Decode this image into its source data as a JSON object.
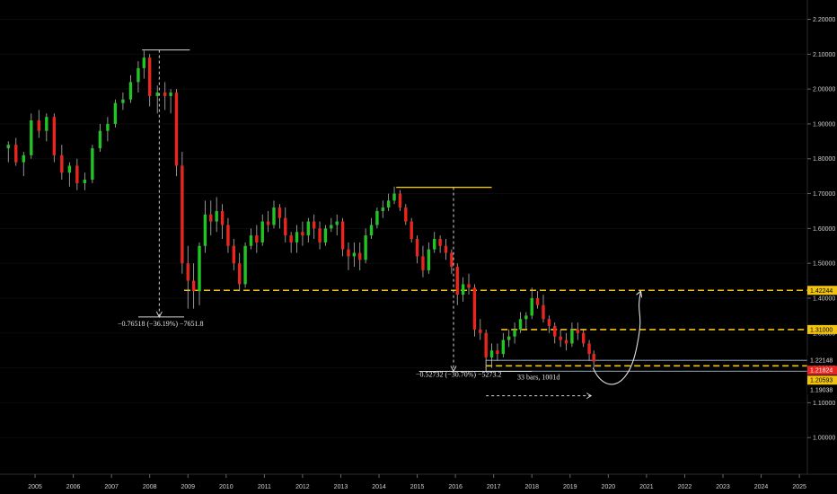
{
  "chart_data": {
    "type": "candlestick",
    "x_axis": {
      "ticks": [
        "2005",
        "2006",
        "2007",
        "2008",
        "2009",
        "2010",
        "2011",
        "2012",
        "2013",
        "2014",
        "2015",
        "2016",
        "2017",
        "2018",
        "2019",
        "2020",
        "2021",
        "2022",
        "2023",
        "2024",
        "2025"
      ],
      "range": [
        2004.2,
        2025.35
      ]
    },
    "y_axis": {
      "ticks": [
        "2.20000",
        "2.10000",
        "2.00000",
        "1.90000",
        "1.80000",
        "1.70000",
        "1.60000",
        "1.50000",
        "1.40000",
        "1.30000",
        "1.20000",
        "1.10000",
        "1.00000"
      ],
      "range": [
        0.9,
        2.24
      ]
    },
    "colors": {
      "up": "#22c425",
      "down": "#e8261f",
      "wick": "#b8b8b8",
      "level": "#f2c40f",
      "support": "#7f8a9e",
      "measure": "#d6d6d6"
    },
    "price_levels": [
      {
        "value": 1.42244,
        "label": "1.42244",
        "style": "dashed",
        "color": "#f2c40f",
        "badge_bg": "#f2c40f",
        "badge_fg": "#000000"
      },
      {
        "value": 1.31,
        "label": "1.31000",
        "style": "dashed",
        "color": "#f2c40f",
        "badge_bg": "#f2c40f",
        "badge_fg": "#000000"
      },
      {
        "value": 1.22148,
        "label": "1.22148",
        "style": "solid",
        "color": "#7f8a9e",
        "badge_bg": "#000000",
        "badge_fg": "#e0e0e0"
      },
      {
        "value": 1.21824,
        "label": "1.21824",
        "style": "solid",
        "color": "#e8261f",
        "badge_bg": "#e8261f",
        "badge_fg": "#ffffff"
      },
      {
        "value": 1.20593,
        "label": "1.20593",
        "style": "dashed",
        "color": "#f2c40f",
        "badge_bg": "#f2c40f",
        "badge_fg": "#000000"
      },
      {
        "value": 1.19038,
        "label": "1.19038",
        "style": "solid",
        "color": "#7f8a9e",
        "badge_bg": "#000000",
        "badge_fg": "#e0e0e0"
      }
    ],
    "annotations": {
      "drop1": {
        "label": "−0.76518 (−36.19%) −7651.8",
        "from": [
          2007.8,
          2.112
        ],
        "to": [
          2008.9,
          1.346
        ]
      },
      "drop2": {
        "label": "−0.52732 (−30.70%) −5273.2",
        "from": [
          2014.45,
          1.718
        ],
        "to": [
          2016.2,
          1.19
        ]
      },
      "range": {
        "label": "33 bars, 1001d",
        "from": 2016.8,
        "to": 2019.55
      },
      "projection": {
        "from": [
          2019.6,
          1.2
        ],
        "to": [
          2020.85,
          1.42
        ]
      }
    },
    "candles": [
      {
        "t": 2004.3,
        "o": 1.83,
        "h": 1.85,
        "l": 1.79,
        "c": 1.84
      },
      {
        "t": 2004.5,
        "o": 1.84,
        "h": 1.86,
        "l": 1.78,
        "c": 1.79
      },
      {
        "t": 2004.7,
        "o": 1.79,
        "h": 1.82,
        "l": 1.75,
        "c": 1.81
      },
      {
        "t": 2004.9,
        "o": 1.81,
        "h": 1.93,
        "l": 1.8,
        "c": 1.91
      },
      {
        "t": 2005.1,
        "o": 1.91,
        "h": 1.94,
        "l": 1.86,
        "c": 1.88
      },
      {
        "t": 2005.3,
        "o": 1.88,
        "h": 1.93,
        "l": 1.85,
        "c": 1.92
      },
      {
        "t": 2005.5,
        "o": 1.92,
        "h": 1.93,
        "l": 1.79,
        "c": 1.81
      },
      {
        "t": 2005.7,
        "o": 1.81,
        "h": 1.84,
        "l": 1.74,
        "c": 1.76
      },
      {
        "t": 2005.9,
        "o": 1.76,
        "h": 1.79,
        "l": 1.72,
        "c": 1.78
      },
      {
        "t": 2006.1,
        "o": 1.78,
        "h": 1.8,
        "l": 1.71,
        "c": 1.73
      },
      {
        "t": 2006.3,
        "o": 1.73,
        "h": 1.76,
        "l": 1.71,
        "c": 1.74
      },
      {
        "t": 2006.5,
        "o": 1.74,
        "h": 1.84,
        "l": 1.73,
        "c": 1.83
      },
      {
        "t": 2006.7,
        "o": 1.83,
        "h": 1.9,
        "l": 1.82,
        "c": 1.88
      },
      {
        "t": 2006.9,
        "o": 1.88,
        "h": 1.92,
        "l": 1.85,
        "c": 1.9
      },
      {
        "t": 2007.1,
        "o": 1.9,
        "h": 1.97,
        "l": 1.89,
        "c": 1.96
      },
      {
        "t": 2007.3,
        "o": 1.96,
        "h": 1.99,
        "l": 1.94,
        "c": 1.97
      },
      {
        "t": 2007.5,
        "o": 1.97,
        "h": 2.04,
        "l": 1.96,
        "c": 2.02
      },
      {
        "t": 2007.7,
        "o": 2.02,
        "h": 2.08,
        "l": 1.99,
        "c": 2.06
      },
      {
        "t": 2007.85,
        "o": 2.06,
        "h": 2.11,
        "l": 2.03,
        "c": 2.09
      },
      {
        "t": 2008.0,
        "o": 2.09,
        "h": 2.1,
        "l": 1.95,
        "c": 1.98
      },
      {
        "t": 2008.2,
        "o": 1.98,
        "h": 2.01,
        "l": 1.93,
        "c": 1.99
      },
      {
        "t": 2008.4,
        "o": 1.99,
        "h": 2.02,
        "l": 1.94,
        "c": 1.98
      },
      {
        "t": 2008.55,
        "o": 1.98,
        "h": 2.0,
        "l": 1.93,
        "c": 1.99
      },
      {
        "t": 2008.7,
        "o": 1.99,
        "h": 2.0,
        "l": 1.75,
        "c": 1.78
      },
      {
        "t": 2008.85,
        "o": 1.78,
        "h": 1.82,
        "l": 1.47,
        "c": 1.5
      },
      {
        "t": 2009.0,
        "o": 1.5,
        "h": 1.55,
        "l": 1.37,
        "c": 1.45
      },
      {
        "t": 2009.15,
        "o": 1.45,
        "h": 1.5,
        "l": 1.37,
        "c": 1.42
      },
      {
        "t": 2009.3,
        "o": 1.42,
        "h": 1.56,
        "l": 1.38,
        "c": 1.55
      },
      {
        "t": 2009.45,
        "o": 1.55,
        "h": 1.68,
        "l": 1.53,
        "c": 1.64
      },
      {
        "t": 2009.6,
        "o": 1.64,
        "h": 1.68,
        "l": 1.58,
        "c": 1.62
      },
      {
        "t": 2009.75,
        "o": 1.62,
        "h": 1.69,
        "l": 1.59,
        "c": 1.65
      },
      {
        "t": 2009.9,
        "o": 1.65,
        "h": 1.67,
        "l": 1.57,
        "c": 1.61
      },
      {
        "t": 2010.05,
        "o": 1.61,
        "h": 1.63,
        "l": 1.53,
        "c": 1.55
      },
      {
        "t": 2010.2,
        "o": 1.55,
        "h": 1.57,
        "l": 1.48,
        "c": 1.5
      },
      {
        "t": 2010.35,
        "o": 1.5,
        "h": 1.53,
        "l": 1.42,
        "c": 1.44
      },
      {
        "t": 2010.5,
        "o": 1.44,
        "h": 1.56,
        "l": 1.43,
        "c": 1.55
      },
      {
        "t": 2010.65,
        "o": 1.55,
        "h": 1.6,
        "l": 1.54,
        "c": 1.58
      },
      {
        "t": 2010.8,
        "o": 1.58,
        "h": 1.61,
        "l": 1.53,
        "c": 1.56
      },
      {
        "t": 2010.95,
        "o": 1.56,
        "h": 1.64,
        "l": 1.55,
        "c": 1.62
      },
      {
        "t": 2011.1,
        "o": 1.62,
        "h": 1.65,
        "l": 1.59,
        "c": 1.61
      },
      {
        "t": 2011.25,
        "o": 1.61,
        "h": 1.68,
        "l": 1.6,
        "c": 1.66
      },
      {
        "t": 2011.4,
        "o": 1.66,
        "h": 1.67,
        "l": 1.6,
        "c": 1.63
      },
      {
        "t": 2011.55,
        "o": 1.63,
        "h": 1.66,
        "l": 1.56,
        "c": 1.58
      },
      {
        "t": 2011.7,
        "o": 1.58,
        "h": 1.59,
        "l": 1.53,
        "c": 1.56
      },
      {
        "t": 2011.85,
        "o": 1.56,
        "h": 1.61,
        "l": 1.53,
        "c": 1.59
      },
      {
        "t": 2012.0,
        "o": 1.59,
        "h": 1.62,
        "l": 1.55,
        "c": 1.58
      },
      {
        "t": 2012.15,
        "o": 1.58,
        "h": 1.63,
        "l": 1.56,
        "c": 1.62
      },
      {
        "t": 2012.3,
        "o": 1.62,
        "h": 1.64,
        "l": 1.57,
        "c": 1.6
      },
      {
        "t": 2012.45,
        "o": 1.6,
        "h": 1.62,
        "l": 1.54,
        "c": 1.56
      },
      {
        "t": 2012.6,
        "o": 1.56,
        "h": 1.61,
        "l": 1.55,
        "c": 1.6
      },
      {
        "t": 2012.75,
        "o": 1.6,
        "h": 1.63,
        "l": 1.59,
        "c": 1.61
      },
      {
        "t": 2012.9,
        "o": 1.61,
        "h": 1.64,
        "l": 1.58,
        "c": 1.62
      },
      {
        "t": 2013.05,
        "o": 1.62,
        "h": 1.63,
        "l": 1.52,
        "c": 1.54
      },
      {
        "t": 2013.2,
        "o": 1.54,
        "h": 1.56,
        "l": 1.48,
        "c": 1.52
      },
      {
        "t": 2013.35,
        "o": 1.52,
        "h": 1.56,
        "l": 1.49,
        "c": 1.53
      },
      {
        "t": 2013.5,
        "o": 1.53,
        "h": 1.56,
        "l": 1.48,
        "c": 1.51
      },
      {
        "t": 2013.65,
        "o": 1.51,
        "h": 1.6,
        "l": 1.5,
        "c": 1.58
      },
      {
        "t": 2013.8,
        "o": 1.58,
        "h": 1.63,
        "l": 1.57,
        "c": 1.61
      },
      {
        "t": 2013.95,
        "o": 1.61,
        "h": 1.66,
        "l": 1.6,
        "c": 1.65
      },
      {
        "t": 2014.1,
        "o": 1.65,
        "h": 1.68,
        "l": 1.63,
        "c": 1.66
      },
      {
        "t": 2014.25,
        "o": 1.66,
        "h": 1.7,
        "l": 1.65,
        "c": 1.68
      },
      {
        "t": 2014.4,
        "o": 1.68,
        "h": 1.72,
        "l": 1.67,
        "c": 1.7
      },
      {
        "t": 2014.55,
        "o": 1.7,
        "h": 1.71,
        "l": 1.65,
        "c": 1.66
      },
      {
        "t": 2014.7,
        "o": 1.66,
        "h": 1.67,
        "l": 1.61,
        "c": 1.62
      },
      {
        "t": 2014.85,
        "o": 1.62,
        "h": 1.63,
        "l": 1.56,
        "c": 1.57
      },
      {
        "t": 2015.0,
        "o": 1.57,
        "h": 1.58,
        "l": 1.5,
        "c": 1.52
      },
      {
        "t": 2015.15,
        "o": 1.52,
        "h": 1.55,
        "l": 1.46,
        "c": 1.48
      },
      {
        "t": 2015.3,
        "o": 1.48,
        "h": 1.56,
        "l": 1.47,
        "c": 1.54
      },
      {
        "t": 2015.45,
        "o": 1.54,
        "h": 1.59,
        "l": 1.53,
        "c": 1.57
      },
      {
        "t": 2015.6,
        "o": 1.57,
        "h": 1.58,
        "l": 1.53,
        "c": 1.55
      },
      {
        "t": 2015.75,
        "o": 1.55,
        "h": 1.57,
        "l": 1.51,
        "c": 1.53
      },
      {
        "t": 2015.9,
        "o": 1.53,
        "h": 1.54,
        "l": 1.47,
        "c": 1.49
      },
      {
        "t": 2016.05,
        "o": 1.49,
        "h": 1.5,
        "l": 1.38,
        "c": 1.41
      },
      {
        "t": 2016.2,
        "o": 1.41,
        "h": 1.46,
        "l": 1.39,
        "c": 1.44
      },
      {
        "t": 2016.35,
        "o": 1.44,
        "h": 1.47,
        "l": 1.41,
        "c": 1.43
      },
      {
        "t": 2016.5,
        "o": 1.43,
        "h": 1.44,
        "l": 1.29,
        "c": 1.31
      },
      {
        "t": 2016.65,
        "o": 1.31,
        "h": 1.34,
        "l": 1.28,
        "c": 1.3
      },
      {
        "t": 2016.8,
        "o": 1.3,
        "h": 1.31,
        "l": 1.19,
        "c": 1.23
      },
      {
        "t": 2016.95,
        "o": 1.23,
        "h": 1.27,
        "l": 1.2,
        "c": 1.25
      },
      {
        "t": 2017.1,
        "o": 1.25,
        "h": 1.27,
        "l": 1.22,
        "c": 1.24
      },
      {
        "t": 2017.25,
        "o": 1.24,
        "h": 1.3,
        "l": 1.23,
        "c": 1.28
      },
      {
        "t": 2017.4,
        "o": 1.28,
        "h": 1.31,
        "l": 1.26,
        "c": 1.29
      },
      {
        "t": 2017.55,
        "o": 1.29,
        "h": 1.33,
        "l": 1.27,
        "c": 1.31
      },
      {
        "t": 2017.7,
        "o": 1.31,
        "h": 1.36,
        "l": 1.3,
        "c": 1.34
      },
      {
        "t": 2017.85,
        "o": 1.34,
        "h": 1.36,
        "l": 1.31,
        "c": 1.35
      },
      {
        "t": 2018.0,
        "o": 1.35,
        "h": 1.43,
        "l": 1.34,
        "c": 1.4
      },
      {
        "t": 2018.15,
        "o": 1.4,
        "h": 1.42,
        "l": 1.37,
        "c": 1.38
      },
      {
        "t": 2018.3,
        "o": 1.38,
        "h": 1.41,
        "l": 1.33,
        "c": 1.34
      },
      {
        "t": 2018.45,
        "o": 1.34,
        "h": 1.35,
        "l": 1.3,
        "c": 1.32
      },
      {
        "t": 2018.6,
        "o": 1.32,
        "h": 1.33,
        "l": 1.27,
        "c": 1.29
      },
      {
        "t": 2018.75,
        "o": 1.29,
        "h": 1.31,
        "l": 1.26,
        "c": 1.28
      },
      {
        "t": 2018.9,
        "o": 1.28,
        "h": 1.3,
        "l": 1.25,
        "c": 1.27
      },
      {
        "t": 2019.05,
        "o": 1.27,
        "h": 1.33,
        "l": 1.26,
        "c": 1.31
      },
      {
        "t": 2019.2,
        "o": 1.31,
        "h": 1.33,
        "l": 1.28,
        "c": 1.3
      },
      {
        "t": 2019.35,
        "o": 1.3,
        "h": 1.31,
        "l": 1.26,
        "c": 1.27
      },
      {
        "t": 2019.5,
        "o": 1.27,
        "h": 1.28,
        "l": 1.22,
        "c": 1.24
      },
      {
        "t": 2019.62,
        "o": 1.24,
        "h": 1.25,
        "l": 1.2,
        "c": 1.218
      }
    ]
  }
}
